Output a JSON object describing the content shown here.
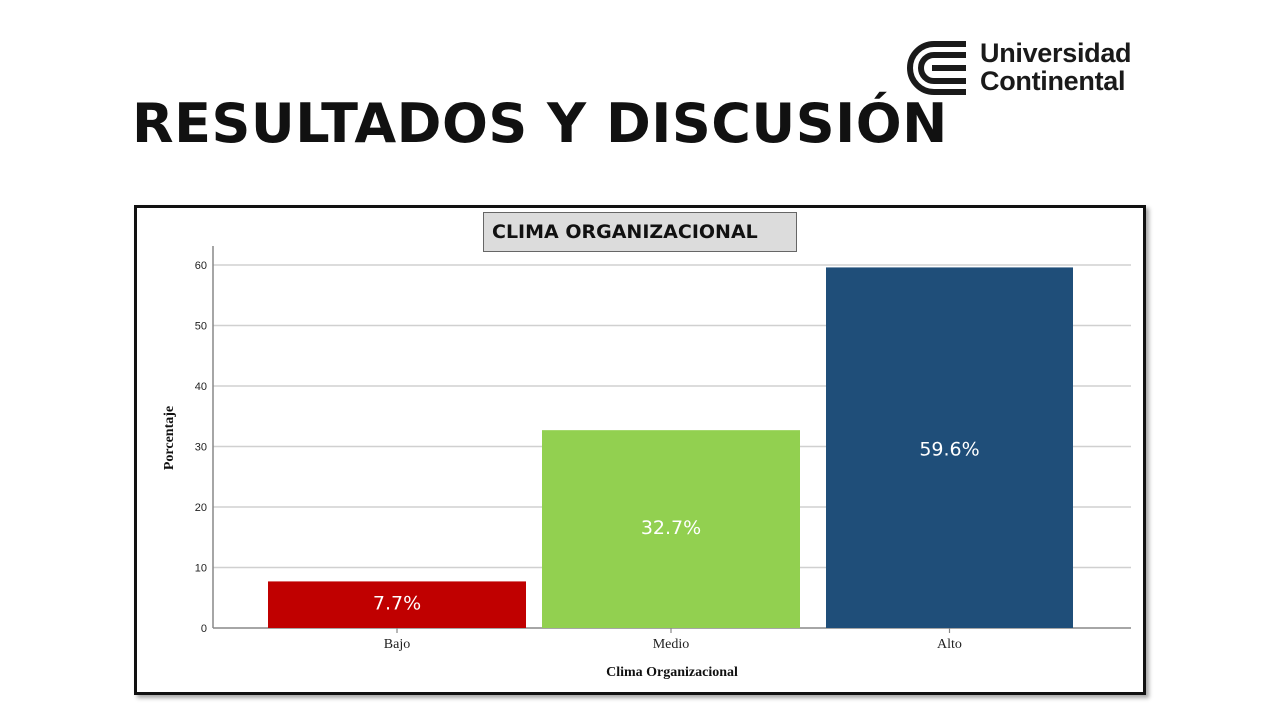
{
  "logo": {
    "line1": "Universidad",
    "line2": "Continental"
  },
  "slide_title": "RESULTADOS Y DISCUSIÓN",
  "colors": {
    "bajo": "#c00000",
    "medio": "#92d050",
    "alto": "#1f4e79",
    "grid": "#d0d0d0"
  },
  "chart_data": {
    "type": "bar",
    "title": "CLIMA ORGANIZACIONAL",
    "xlabel": "Clima Organizacional",
    "ylabel": "Porcentaje",
    "categories": [
      "Bajo",
      "Medio",
      "Alto"
    ],
    "values": [
      7.7,
      32.7,
      59.6
    ],
    "data_labels": [
      "7.7%",
      "32.7%",
      "59.6%"
    ],
    "ylim": [
      0,
      63
    ],
    "yticks": [
      0,
      10,
      20,
      30,
      40,
      50,
      60
    ],
    "grid": true
  }
}
